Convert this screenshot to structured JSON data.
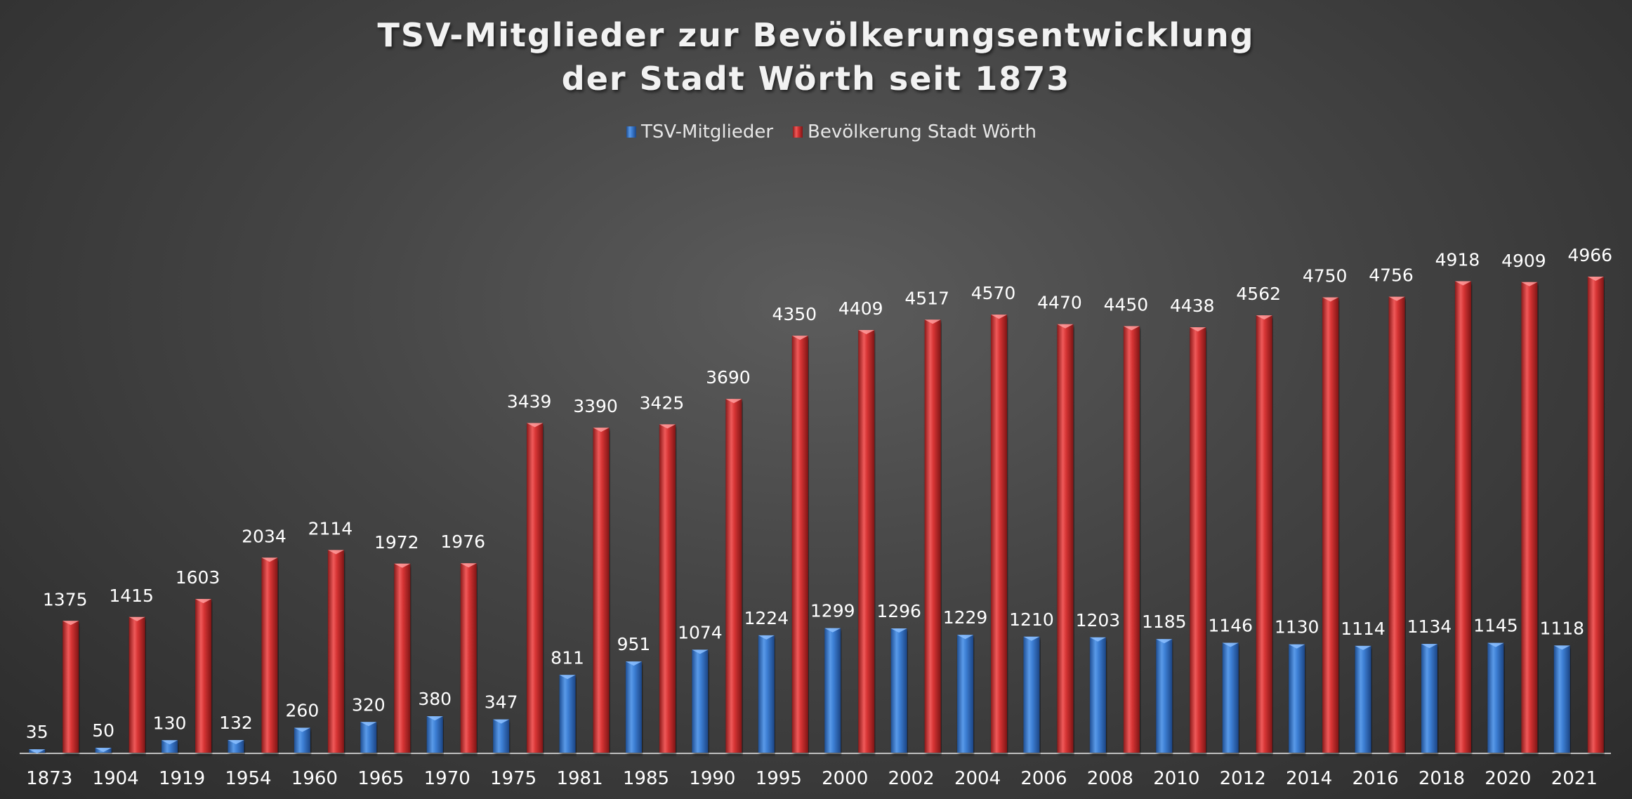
{
  "chart_data": {
    "type": "bar",
    "title_lines": [
      "TSV-Mitglieder zur Bevölkerungsentwicklung",
      "der Stadt Wörth seit 1873"
    ],
    "xlabel": "",
    "ylabel": "",
    "ylim": [
      0,
      5000
    ],
    "grid": false,
    "legend_position": "top-center",
    "categories": [
      "1873",
      "1904",
      "1919",
      "1954",
      "1960",
      "1965",
      "1970",
      "1975",
      "1981",
      "1985",
      "1990",
      "1995",
      "2000",
      "2002",
      "2004",
      "2006",
      "2008",
      "2010",
      "2012",
      "2014",
      "2016",
      "2018",
      "2020",
      "2021"
    ],
    "series": [
      {
        "name": "TSV-Mitglieder",
        "color": "#3d7fd4",
        "values": [
          35,
          50,
          130,
          132,
          260,
          320,
          380,
          347,
          811,
          951,
          1074,
          1224,
          1299,
          1296,
          1229,
          1210,
          1203,
          1185,
          1146,
          1130,
          1114,
          1134,
          1145,
          1118
        ]
      },
      {
        "name": "Bevölkerung Stadt Wörth",
        "color": "#d63434",
        "values": [
          1375,
          1415,
          1603,
          2034,
          2114,
          1972,
          1976,
          3439,
          3390,
          3425,
          3690,
          4350,
          4409,
          4517,
          4570,
          4470,
          4450,
          4438,
          4562,
          4750,
          4756,
          4918,
          4909,
          4966
        ]
      }
    ]
  }
}
